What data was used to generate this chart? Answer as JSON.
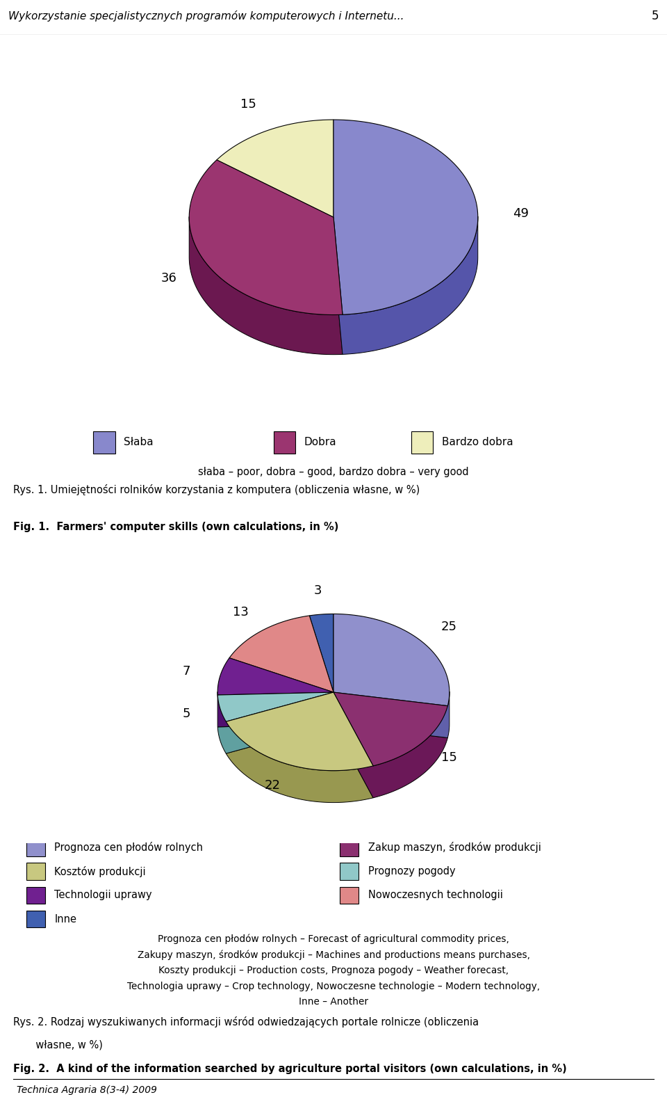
{
  "chart1": {
    "values": [
      49,
      36,
      15
    ],
    "colors_top": [
      "#8888CC",
      "#9B3570",
      "#EEEEBB"
    ],
    "colors_side": [
      "#5555AA",
      "#6B1850",
      "#AAAA77"
    ],
    "startangle": 90
  },
  "chart2": {
    "values": [
      25,
      15,
      22,
      5,
      7,
      13,
      3
    ],
    "colors_top": [
      "#9090CC",
      "#8B3070",
      "#C8C880",
      "#90C8C8",
      "#702090",
      "#E08888",
      "#4060B0"
    ],
    "colors_side": [
      "#6060AA",
      "#6B1858",
      "#989850",
      "#60A0A0",
      "#501070",
      "#B05858",
      "#2040A0"
    ],
    "startangle": 90
  },
  "header_text": "Wykorzystanie specjalistycznych programów komputerowych i Internetu...",
  "header_page": "5",
  "legend1_items": [
    {
      "label": "Słaba",
      "color": "#8888CC",
      "edge": "#5555AA"
    },
    {
      "label": "Dobra",
      "color": "#9B3570",
      "edge": "#6B1850"
    },
    {
      "label": "Bardzo dobra",
      "color": "#EEEEBB",
      "edge": "#AAAA77"
    }
  ],
  "legend1_subtitle": "słaba – poor, dobra – good, bardzo dobra – very good",
  "fig1_caption_pl": "Rys. 1. Umiejętności rolników korzystania z komputera (obliczenia własne, w %)",
  "fig1_caption_en": "Fig. 1.  Farmers' computer skills (own calculations, in %)",
  "legend2_items": [
    {
      "label": "Prognoza cen płodów rolnych",
      "color": "#9090CC",
      "edge": "#6060AA"
    },
    {
      "label": "Zakup maszyn, środków produkcji",
      "color": "#8B3070",
      "edge": "#6B1858"
    },
    {
      "label": "Kosztów produkcji",
      "color": "#C8C880",
      "edge": "#989850"
    },
    {
      "label": "Prognozy pogody",
      "color": "#90C8C8",
      "edge": "#60A0A0"
    },
    {
      "label": "Technologii uprawy",
      "color": "#702090",
      "edge": "#501070"
    },
    {
      "label": "Nowoczesnych technologii",
      "color": "#E08888",
      "edge": "#B05858"
    },
    {
      "label": "Inne",
      "color": "#4060B0",
      "edge": "#2040A0"
    }
  ],
  "fig2_caption_lines": [
    "Prognoza cen płodów rolnych – Forecast of agricultural commodity prices,",
    "Zakupy maszyn, środków produkcji – Machines and productions means purchases,",
    "Koszty produkcji – Production costs, Prognoza pogody – Weather forecast,",
    "Technologia uprawy – Crop technology, Nowoczesne technologie – Modern technology,",
    "Inne – Another"
  ],
  "fig2_caption_pl1": "Rys. 2. Rodzaj wyszukiwanych informacji wśród odwiedzających portale rolnicze (obliczenia",
  "fig2_caption_pl2": "       własne, w %)",
  "fig2_caption_en": "Fig. 2.  A kind of the information searched by agriculture portal visitors (own calculations, in %)",
  "footer_text": "Technica Agraria 8(3-4) 2009"
}
